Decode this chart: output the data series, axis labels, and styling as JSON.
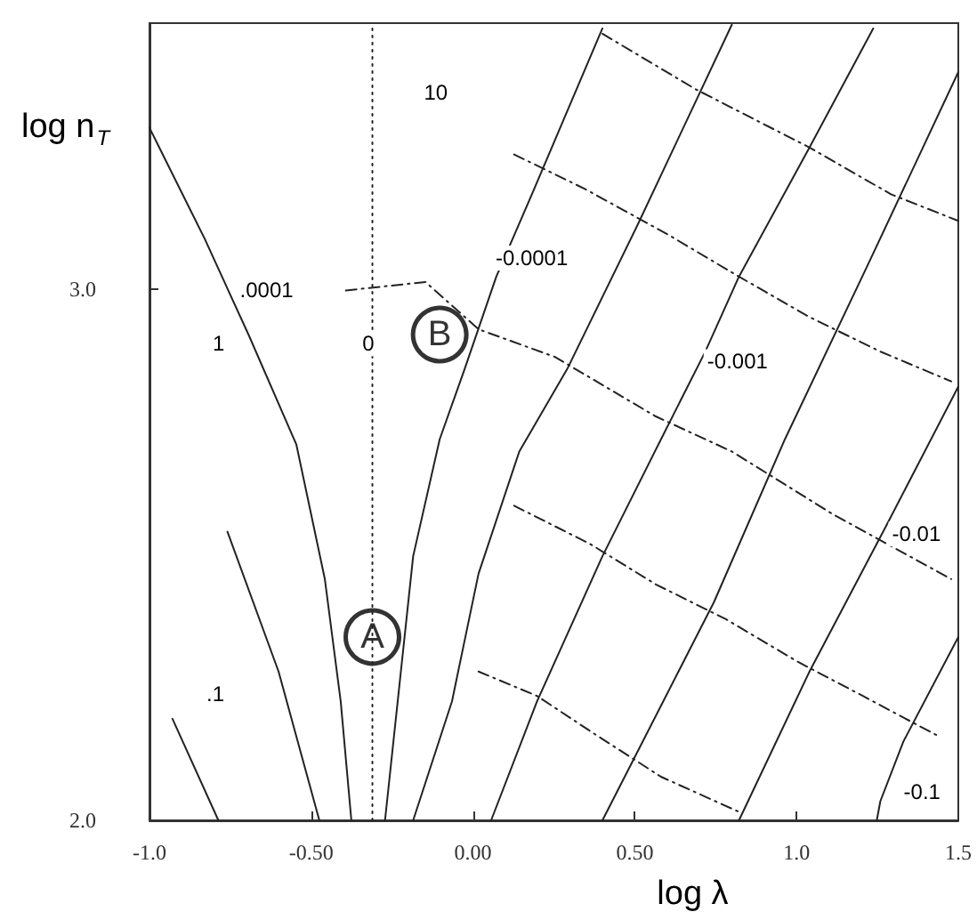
{
  "chart_data": {
    "type": "line",
    "xlabel": "log λ",
    "ylabel": "log n$_{T}$",
    "xlim": [
      -1.0,
      1.5
    ],
    "ylim": [
      2.0,
      3.5
    ],
    "xticks": [
      {
        "value": -1.0,
        "label": "-1.0"
      },
      {
        "value": -0.5,
        "label": "-0.50"
      },
      {
        "value": 0,
        "label": "0.00"
      },
      {
        "value": 0.5,
        "label": "0.50"
      },
      {
        "value": 1.0,
        "label": "1.0"
      },
      {
        "value": 1.5,
        "label": "1.5"
      }
    ],
    "yticks": [
      {
        "value": 2.0,
        "label": "2.0"
      },
      {
        "value": 3.0,
        "label": "3.0"
      }
    ],
    "grid": false,
    "legend": false,
    "marker": "none",
    "series": [
      {
        "x": [
          -0.272,
          -0.185,
          -0.103,
          -0.026,
          0.072,
          0.182,
          0.4
        ],
        "values": [
          2.0,
          2.497,
          2.717,
          2.849,
          3.023,
          3.178,
          3.49
        ],
        "color": "#222222",
        "line_style": "solid"
      },
      {
        "x": [
          -0.185,
          -0.065,
          0.017,
          0.143,
          0.291,
          0.51,
          0.8
        ],
        "values": [
          2.0,
          2.224,
          2.464,
          2.694,
          2.849,
          3.122,
          3.497
        ],
        "color": "#222222",
        "line_style": "solid"
      },
      {
        "x": [
          0.056,
          0.198,
          0.4,
          0.581,
          0.718,
          0.822,
          1.04,
          1.237
        ],
        "values": [
          2.0,
          2.224,
          2.497,
          2.717,
          2.882,
          3.023,
          3.266,
          3.49
        ],
        "color": "#222222",
        "line_style": "solid"
      },
      {
        "x": [
          0.4,
          0.745,
          0.964,
          1.221,
          1.5
        ],
        "values": [
          2.0,
          2.411,
          2.717,
          3.046,
          3.408
        ],
        "color": "#222222",
        "line_style": "solid"
      },
      {
        "x": [
          0.822,
          1.04,
          1.276,
          1.5
        ],
        "values": [
          2.0,
          2.28,
          2.553,
          2.816
        ],
        "color": "#222222",
        "line_style": "solid"
      },
      {
        "x": [
          1.248,
          1.259,
          1.33,
          1.5
        ],
        "values": [
          2.0,
          2.036,
          2.148,
          2.345
        ],
        "color": "#222222",
        "line_style": "solid"
      },
      {
        "x": [
          -1.0,
          -0.978,
          -0.83,
          -0.694,
          -0.546,
          -0.458,
          -0.409,
          -0.376
        ],
        "values": [
          3.303,
          3.276,
          3.095,
          2.914,
          2.707,
          2.454,
          2.224,
          2.0
        ],
        "color": "#222222",
        "line_style": "solid"
      },
      {
        "x": [
          -0.759,
          -0.601,
          -0.475
        ],
        "values": [
          2.543,
          2.28,
          2.0
        ],
        "color": "#222222",
        "line_style": "solid"
      },
      {
        "x": [
          -0.929,
          -0.787
        ],
        "values": [
          2.191,
          2.0
        ],
        "color": "#222222",
        "line_style": "solid"
      },
      {
        "x": [
          -0.311,
          -0.311
        ],
        "values": [
          2.0,
          3.5
        ],
        "color": "#222222",
        "line_style": "dotted"
      },
      {
        "x": [
          0.4,
          0.69,
          1.04,
          1.292,
          1.5
        ],
        "values": [
          3.48,
          3.375,
          3.266,
          3.178,
          3.128
        ],
        "color": "#222222",
        "line_style": "dashed"
      },
      {
        "x": [
          0.127,
          0.346,
          0.603,
          0.822,
          1.04,
          1.259,
          1.478
        ],
        "values": [
          3.253,
          3.188,
          3.102,
          3.023,
          2.947,
          2.882,
          2.826
        ],
        "color": "#222222",
        "line_style": "dashed"
      },
      {
        "x": [
          -0.393,
          -0.147,
          0.017,
          0.253,
          0.565,
          0.8,
          1.112,
          1.478
        ],
        "values": [
          2.997,
          3.013,
          2.924,
          2.872,
          2.76,
          2.694,
          2.576,
          2.454
        ],
        "color": "#222222",
        "line_style": "dashed"
      },
      {
        "x": [
          0.127,
          0.362,
          0.565,
          0.783,
          1.002,
          1.205,
          1.44
        ],
        "values": [
          2.592,
          2.52,
          2.444,
          2.378,
          2.299,
          2.234,
          2.158
        ],
        "color": "#222222",
        "line_style": "dashed"
      },
      {
        "x": [
          0.017,
          0.198,
          0.362,
          0.581,
          0.822
        ],
        "values": [
          2.28,
          2.234,
          2.168,
          2.082,
          2.016
        ],
        "color": "#222222",
        "line_style": "dashed"
      },
      {
        "type": "scatter",
        "name": "A",
        "x": [
          -0.311
        ],
        "values": [
          2.345
        ],
        "color": "#000000",
        "marker": "circle"
      },
      {
        "type": "scatter",
        "name": "B",
        "x": [
          -0.103
        ],
        "values": [
          2.914
        ],
        "color": "#000000",
        "marker": "circle"
      }
    ],
    "annotations": [
      "10",
      ".0001",
      "1",
      "0",
      "-0.0001",
      "-0.001",
      "-0.01",
      "-0.1",
      ".1"
    ]
  }
}
